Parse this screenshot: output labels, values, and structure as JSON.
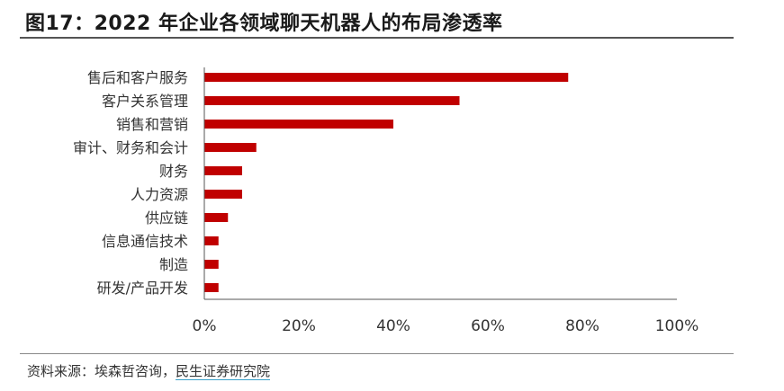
{
  "header": {
    "title": "图17：2022 年企业各领域聊天机器人的布局渗透率"
  },
  "footer": {
    "source_prefix": "资料来源：埃森哲咨询，",
    "source_highlight": "民生证券研究院"
  },
  "chart_data": {
    "type": "bar",
    "orientation": "horizontal",
    "categories": [
      "售后和客户服务",
      "客户关系管理",
      "销售和营销",
      "审计、财务和会计",
      "财务",
      "人力资源",
      "供应链",
      "信息通信技术",
      "制造",
      "研发/产品开发"
    ],
    "values": [
      0.77,
      0.54,
      0.4,
      0.11,
      0.08,
      0.08,
      0.05,
      0.03,
      0.03,
      0.03
    ],
    "xlim": [
      0,
      1
    ],
    "xticks": [
      0,
      0.2,
      0.4,
      0.6,
      0.8,
      1.0
    ],
    "xtick_labels": [
      "0%",
      "20%",
      "40%",
      "60%",
      "80%",
      "100%"
    ],
    "bar_color": "#c00000",
    "grid": false,
    "legend": "none"
  }
}
